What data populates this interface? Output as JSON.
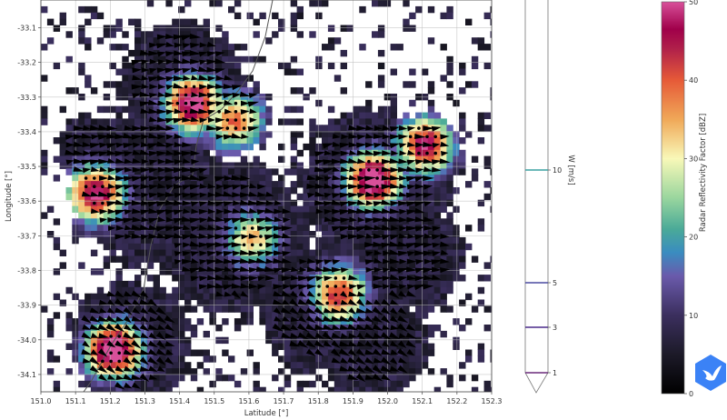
{
  "chart_data": {
    "type": "heatmap",
    "title": "",
    "xlabel": "Latitude [°]",
    "ylabel": "Longitude [°]",
    "xlim": [
      151.0,
      152.3
    ],
    "ylim": [
      -34.15,
      -33.02
    ],
    "x_ticks": [
      "151.0",
      "151.1",
      "151.2",
      "151.3",
      "151.4",
      "151.5",
      "151.6",
      "151.7",
      "151.8",
      "151.9",
      "152.0",
      "152.1",
      "152.2",
      "152.3"
    ],
    "y_ticks": [
      "-33.1",
      "-33.2",
      "-33.3",
      "-33.4",
      "-33.5",
      "-33.6",
      "-33.7",
      "-33.8",
      "-33.9",
      "-34.0",
      "-34.1"
    ],
    "grid": true,
    "overlay": "wind vectors (black triangles) and coastline",
    "storm_cells": [
      {
        "lon": 151.43,
        "lat": -33.31,
        "dbz": 45
      },
      {
        "lon": 151.55,
        "lat": -33.36,
        "dbz": 30
      },
      {
        "lon": 151.15,
        "lat": -33.57,
        "dbz": 42
      },
      {
        "lon": 151.95,
        "lat": -33.53,
        "dbz": 48
      },
      {
        "lon": 152.1,
        "lat": -33.43,
        "dbz": 40
      },
      {
        "lon": 151.2,
        "lat": -34.02,
        "dbz": 50
      },
      {
        "lon": 151.85,
        "lat": -33.86,
        "dbz": 35
      },
      {
        "lon": 151.6,
        "lat": -33.7,
        "dbz": 24
      }
    ],
    "colorbars": [
      {
        "label": "W [m/s]",
        "ticks": [
          "1",
          "3",
          "5",
          "10"
        ],
        "levels": [
          1,
          3,
          5,
          10
        ],
        "level_colors": [
          "#6a2a7a",
          "#4a2a8a",
          "#4a4aa0",
          "#3aa0a0"
        ],
        "extend": "min"
      },
      {
        "label": "Radar Reflectivity Factor [dBZ]",
        "ticks": [
          "0",
          "10",
          "20",
          "30",
          "40",
          "50"
        ],
        "range": [
          0,
          50
        ]
      }
    ]
  },
  "watermark": {
    "icon": "bird-hexagon-logo",
    "color": "#3b82f6"
  }
}
